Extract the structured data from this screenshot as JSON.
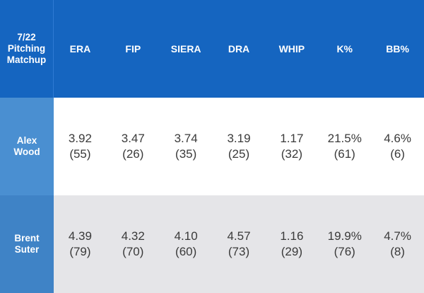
{
  "header": {
    "corner": {
      "line1": "7/22",
      "line2": "Pitching",
      "line3": "Matchup"
    },
    "columns": [
      "ERA",
      "FIP",
      "SIERA",
      "DRA",
      "WHIP",
      "K%",
      "BB%"
    ]
  },
  "rows": [
    {
      "name": "Alex Wood",
      "stats": [
        {
          "value": "3.92",
          "rank": "(55)"
        },
        {
          "value": "3.47",
          "rank": "(26)"
        },
        {
          "value": "3.74",
          "rank": "(35)"
        },
        {
          "value": "3.19",
          "rank": "(25)"
        },
        {
          "value": "1.17",
          "rank": "(32)"
        },
        {
          "value": "21.5%",
          "rank": "(61)"
        },
        {
          "value": "4.6%",
          "rank": "(6)"
        }
      ]
    },
    {
      "name_line1": "Brent",
      "name_line2": "Suter",
      "stats": [
        {
          "value": "4.39",
          "rank": "(79)"
        },
        {
          "value": "4.32",
          "rank": "(70)"
        },
        {
          "value": "4.10",
          "rank": "(60)"
        },
        {
          "value": "4.57",
          "rank": "(73)"
        },
        {
          "value": "1.16",
          "rank": "(29)"
        },
        {
          "value": "19.9%",
          "rank": "(76)"
        },
        {
          "value": "4.7%",
          "rank": "(8)"
        }
      ]
    }
  ],
  "colors": {
    "header_bg": "#1565c0",
    "row_label_bg": "#4a8fd1",
    "row1_bg": "#ffffff",
    "row2_bg": "#e5e5e8",
    "text_dark": "#3a3a3a"
  }
}
